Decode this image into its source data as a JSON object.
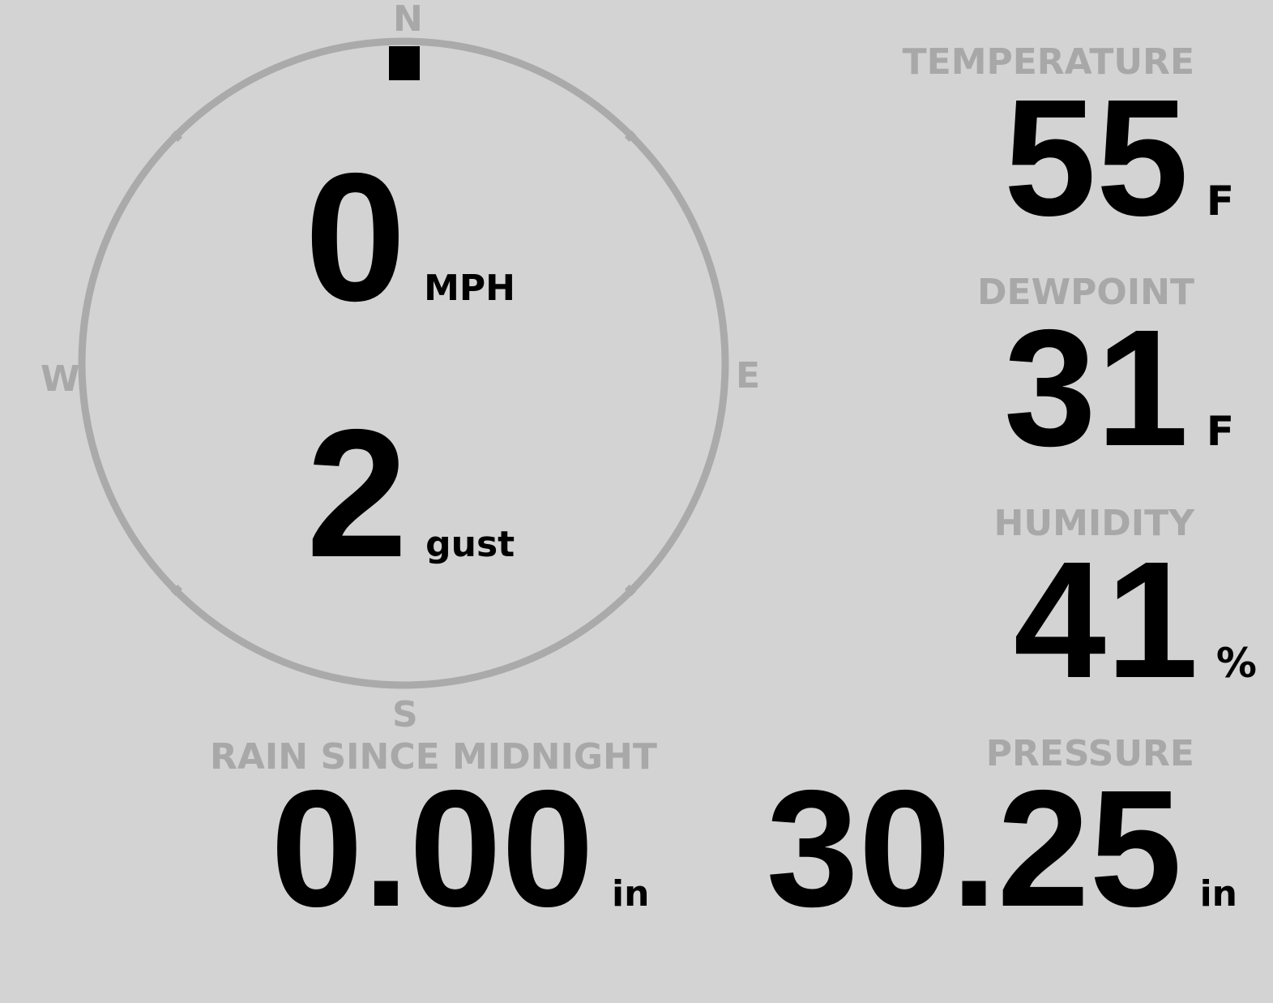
{
  "compass": {
    "north": "N",
    "south": "S",
    "east": "E",
    "west": "W",
    "wind_direction_deg": 0,
    "ring_color": "#aaaaaa",
    "indicator_color": "#000000"
  },
  "wind": {
    "speed": "0",
    "speed_unit": "MPH",
    "gust": "2",
    "gust_unit": "gust"
  },
  "temperature": {
    "label": "TEMPERATURE",
    "value": "55",
    "unit": "F"
  },
  "dewpoint": {
    "label": "DEWPOINT",
    "value": "31",
    "unit": "F"
  },
  "humidity": {
    "label": "HUMIDITY",
    "value": "41",
    "unit": "%"
  },
  "rain": {
    "label": "RAIN SINCE MIDNIGHT",
    "value": "0.00",
    "unit": "in"
  },
  "pressure": {
    "label": "PRESSURE",
    "value": "30.25",
    "unit": "in"
  },
  "colors": {
    "background": "#d3d3d3",
    "label": "#a8a8a8",
    "value": "#000000"
  }
}
